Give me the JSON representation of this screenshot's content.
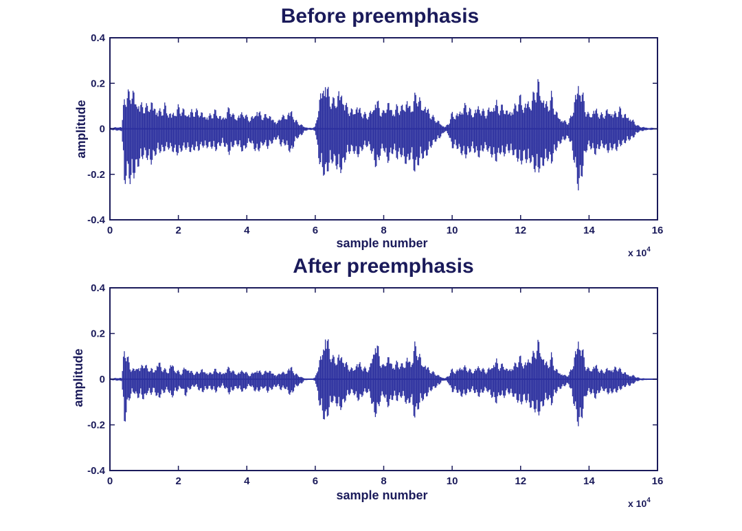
{
  "colors": {
    "axis": "#1a1a5a",
    "signal": "#2b2f9e",
    "background": "#ffffff"
  },
  "chart_data": [
    {
      "type": "line",
      "title": "Before preemphasis",
      "xlabel": "sample number",
      "ylabel": "amplitude",
      "x_multiplier": "x 10",
      "x_multiplier_exponent": "4",
      "xlim": [
        0,
        160000
      ],
      "ylim": [
        -0.4,
        0.4
      ],
      "xticks": [
        "0",
        "2",
        "4",
        "6",
        "8",
        "10",
        "12",
        "14",
        "16"
      ],
      "yticks": [
        "-0.4",
        "-0.2",
        "0",
        "0.2",
        "0.4"
      ],
      "grid": false,
      "series": [
        {
          "x": [
            0,
            3500,
            4200,
            5000,
            6000,
            7000,
            8000,
            9000,
            10000,
            11000,
            12000,
            13000,
            14000,
            15000,
            16000,
            17000,
            18000,
            19000,
            20000,
            21000,
            22000,
            23000,
            24000,
            25000,
            26000,
            27000,
            28000,
            29000,
            30000,
            31000,
            32000,
            33000,
            34000,
            35000,
            36000,
            37000,
            38000,
            39000,
            40000,
            41000,
            42000,
            43000,
            44000,
            45000,
            46000,
            47000,
            48000,
            49000,
            50000,
            51000,
            52000,
            53000,
            54000,
            55000,
            56000,
            57000,
            58000,
            59000,
            60000,
            61000,
            62000,
            63000,
            64000,
            65000,
            66000,
            67000,
            68000,
            69000,
            70000,
            71000,
            72000,
            73000,
            74000,
            75000,
            76000,
            77000,
            78000,
            79000,
            80000,
            81000,
            82000,
            83000,
            84000,
            85000,
            86000,
            87000,
            88000,
            89000,
            90000,
            91000,
            92000,
            93000,
            94000,
            95000,
            96000,
            97000,
            98000,
            99000,
            100000,
            101000,
            102000,
            103000,
            104000,
            105000,
            106000,
            107000,
            108000,
            109000,
            110000,
            111000,
            112000,
            113000,
            114000,
            115000,
            116000,
            117000,
            118000,
            119000,
            120000,
            121000,
            122000,
            123000,
            124000,
            125000,
            126000,
            127000,
            128000,
            129000,
            130000,
            131000,
            132000,
            133000,
            134000,
            135000,
            136000,
            137000,
            138000,
            139000,
            140000,
            141000,
            142000,
            143000,
            144000,
            145000,
            146000,
            147000,
            148000,
            149000,
            150000,
            151000,
            152000,
            153000,
            154000,
            155000,
            156000,
            157000,
            158000,
            159000,
            160000
          ],
          "max": [
            0.005,
            0.01,
            0.19,
            0.16,
            0.2,
            0.18,
            0.14,
            0.13,
            0.12,
            0.11,
            0.14,
            0.12,
            0.1,
            0.09,
            0.12,
            0.09,
            0.08,
            0.09,
            0.11,
            0.1,
            0.09,
            0.08,
            0.1,
            0.09,
            0.09,
            0.08,
            0.07,
            0.07,
            0.08,
            0.09,
            0.07,
            0.06,
            0.08,
            0.11,
            0.07,
            0.06,
            0.08,
            0.09,
            0.06,
            0.05,
            0.07,
            0.1,
            0.08,
            0.06,
            0.08,
            0.06,
            0.05,
            0.03,
            0.07,
            0.06,
            0.08,
            0.1,
            0.05,
            0.03,
            0.02,
            0.01,
            0.005,
            0.005,
            0.01,
            0.12,
            0.22,
            0.26,
            0.18,
            0.14,
            0.15,
            0.2,
            0.18,
            0.12,
            0.1,
            0.09,
            0.12,
            0.11,
            0.08,
            0.07,
            0.08,
            0.12,
            0.16,
            0.1,
            0.08,
            0.14,
            0.12,
            0.09,
            0.12,
            0.1,
            0.13,
            0.15,
            0.11,
            0.16,
            0.18,
            0.12,
            0.13,
            0.1,
            0.07,
            0.05,
            0.04,
            0.02,
            0.01,
            0.03,
            0.08,
            0.07,
            0.09,
            0.11,
            0.12,
            0.1,
            0.08,
            0.11,
            0.12,
            0.09,
            0.08,
            0.11,
            0.12,
            0.14,
            0.1,
            0.12,
            0.09,
            0.1,
            0.11,
            0.13,
            0.16,
            0.12,
            0.15,
            0.14,
            0.18,
            0.24,
            0.19,
            0.15,
            0.13,
            0.17,
            0.1,
            0.07,
            0.05,
            0.04,
            0.03,
            0.08,
            0.17,
            0.25,
            0.19,
            0.1,
            0.07,
            0.09,
            0.11,
            0.08,
            0.07,
            0.09,
            0.1,
            0.08,
            0.09,
            0.1,
            0.08,
            0.07,
            0.06,
            0.04,
            0.02,
            0.01,
            0.01,
            0.005,
            0.005,
            0.005
          ],
          "min": [
            -0.005,
            -0.01,
            -0.27,
            -0.2,
            -0.25,
            -0.22,
            -0.18,
            -0.15,
            -0.12,
            -0.14,
            -0.16,
            -0.13,
            -0.1,
            -0.11,
            -0.1,
            -0.09,
            -0.1,
            -0.11,
            -0.12,
            -0.1,
            -0.09,
            -0.1,
            -0.11,
            -0.09,
            -0.1,
            -0.08,
            -0.09,
            -0.08,
            -0.09,
            -0.1,
            -0.08,
            -0.07,
            -0.09,
            -0.12,
            -0.08,
            -0.07,
            -0.09,
            -0.11,
            -0.08,
            -0.06,
            -0.09,
            -0.11,
            -0.09,
            -0.07,
            -0.09,
            -0.07,
            -0.06,
            -0.04,
            -0.08,
            -0.07,
            -0.09,
            -0.12,
            -0.06,
            -0.04,
            -0.03,
            -0.01,
            -0.005,
            -0.005,
            -0.01,
            -0.14,
            -0.2,
            -0.22,
            -0.18,
            -0.15,
            -0.17,
            -0.2,
            -0.19,
            -0.13,
            -0.11,
            -0.1,
            -0.13,
            -0.12,
            -0.09,
            -0.08,
            -0.09,
            -0.14,
            -0.19,
            -0.12,
            -0.09,
            -0.16,
            -0.13,
            -0.1,
            -0.14,
            -0.12,
            -0.15,
            -0.17,
            -0.12,
            -0.2,
            -0.17,
            -0.13,
            -0.14,
            -0.11,
            -0.08,
            -0.06,
            -0.05,
            -0.03,
            -0.01,
            -0.03,
            -0.09,
            -0.08,
            -0.1,
            -0.12,
            -0.13,
            -0.11,
            -0.09,
            -0.12,
            -0.13,
            -0.1,
            -0.09,
            -0.12,
            -0.13,
            -0.15,
            -0.11,
            -0.13,
            -0.1,
            -0.11,
            -0.12,
            -0.14,
            -0.17,
            -0.13,
            -0.16,
            -0.15,
            -0.19,
            -0.2,
            -0.18,
            -0.16,
            -0.14,
            -0.16,
            -0.11,
            -0.08,
            -0.06,
            -0.05,
            -0.04,
            -0.09,
            -0.19,
            -0.29,
            -0.21,
            -0.11,
            -0.08,
            -0.1,
            -0.12,
            -0.09,
            -0.08,
            -0.1,
            -0.11,
            -0.09,
            -0.1,
            -0.08,
            -0.07,
            -0.06,
            -0.05,
            -0.04,
            -0.02,
            -0.01,
            -0.01,
            -0.005,
            -0.005,
            -0.005
          ]
        }
      ]
    },
    {
      "type": "line",
      "title": "After preemphasis",
      "xlabel": "sample number",
      "ylabel": "amplitude",
      "x_multiplier": "x 10",
      "x_multiplier_exponent": "4",
      "xlim": [
        0,
        160000
      ],
      "ylim": [
        -0.4,
        0.4
      ],
      "xticks": [
        "0",
        "2",
        "4",
        "6",
        "8",
        "10",
        "12",
        "14",
        "16"
      ],
      "yticks": [
        "-0.4",
        "-0.2",
        "0",
        "0.2",
        "0.4"
      ],
      "grid": false,
      "series": [
        {
          "x": [
            0,
            3500,
            4200,
            5000,
            6000,
            7000,
            8000,
            9000,
            10000,
            11000,
            12000,
            13000,
            14000,
            15000,
            16000,
            17000,
            18000,
            19000,
            20000,
            21000,
            22000,
            23000,
            24000,
            25000,
            26000,
            27000,
            28000,
            29000,
            30000,
            31000,
            32000,
            33000,
            34000,
            35000,
            36000,
            37000,
            38000,
            39000,
            40000,
            41000,
            42000,
            43000,
            44000,
            45000,
            46000,
            47000,
            48000,
            49000,
            50000,
            51000,
            52000,
            53000,
            54000,
            55000,
            56000,
            57000,
            58000,
            59000,
            60000,
            61000,
            62000,
            63000,
            64000,
            65000,
            66000,
            67000,
            68000,
            69000,
            70000,
            71000,
            72000,
            73000,
            74000,
            75000,
            76000,
            77000,
            78000,
            79000,
            80000,
            81000,
            82000,
            83000,
            84000,
            85000,
            86000,
            87000,
            88000,
            89000,
            90000,
            91000,
            92000,
            93000,
            94000,
            95000,
            96000,
            97000,
            98000,
            99000,
            100000,
            101000,
            102000,
            103000,
            104000,
            105000,
            106000,
            107000,
            108000,
            109000,
            110000,
            111000,
            112000,
            113000,
            114000,
            115000,
            116000,
            117000,
            118000,
            119000,
            120000,
            121000,
            122000,
            123000,
            124000,
            125000,
            126000,
            127000,
            128000,
            129000,
            130000,
            131000,
            132000,
            133000,
            134000,
            135000,
            136000,
            137000,
            138000,
            139000,
            140000,
            141000,
            142000,
            143000,
            144000,
            145000,
            146000,
            147000,
            148000,
            149000,
            150000,
            151000,
            152000,
            153000,
            154000,
            155000,
            156000,
            157000,
            158000,
            159000,
            160000
          ],
          "max": [
            0.004,
            0.008,
            0.18,
            0.12,
            0.06,
            0.05,
            0.07,
            0.06,
            0.09,
            0.05,
            0.06,
            0.04,
            0.1,
            0.06,
            0.05,
            0.04,
            0.09,
            0.05,
            0.04,
            0.03,
            0.07,
            0.05,
            0.04,
            0.03,
            0.04,
            0.05,
            0.04,
            0.03,
            0.04,
            0.05,
            0.04,
            0.03,
            0.05,
            0.06,
            0.04,
            0.03,
            0.04,
            0.05,
            0.03,
            0.02,
            0.04,
            0.05,
            0.04,
            0.03,
            0.05,
            0.04,
            0.03,
            0.02,
            0.04,
            0.03,
            0.05,
            0.07,
            0.03,
            0.02,
            0.01,
            0.005,
            0.003,
            0.003,
            0.008,
            0.08,
            0.14,
            0.25,
            0.17,
            0.11,
            0.1,
            0.13,
            0.12,
            0.08,
            0.06,
            0.05,
            0.08,
            0.09,
            0.06,
            0.05,
            0.06,
            0.16,
            0.2,
            0.1,
            0.06,
            0.12,
            0.1,
            0.07,
            0.09,
            0.07,
            0.08,
            0.12,
            0.08,
            0.17,
            0.15,
            0.09,
            0.08,
            0.06,
            0.04,
            0.03,
            0.02,
            0.01,
            0.005,
            0.02,
            0.05,
            0.04,
            0.06,
            0.07,
            0.06,
            0.05,
            0.04,
            0.06,
            0.07,
            0.05,
            0.04,
            0.06,
            0.08,
            0.1,
            0.06,
            0.08,
            0.05,
            0.06,
            0.07,
            0.09,
            0.11,
            0.08,
            0.1,
            0.12,
            0.13,
            0.19,
            0.15,
            0.1,
            0.08,
            0.12,
            0.06,
            0.04,
            0.03,
            0.02,
            0.02,
            0.06,
            0.14,
            0.22,
            0.16,
            0.07,
            0.05,
            0.06,
            0.08,
            0.05,
            0.04,
            0.05,
            0.06,
            0.05,
            0.07,
            0.05,
            0.04,
            0.03,
            0.02,
            0.02,
            0.01,
            0.005,
            0.005,
            0.003,
            0.003,
            0.003
          ],
          "min": [
            -0.004,
            -0.008,
            -0.22,
            -0.13,
            -0.08,
            -0.06,
            -0.09,
            -0.07,
            -0.1,
            -0.06,
            -0.07,
            -0.05,
            -0.1,
            -0.07,
            -0.06,
            -0.05,
            -0.09,
            -0.06,
            -0.05,
            -0.04,
            -0.08,
            -0.05,
            -0.04,
            -0.03,
            -0.05,
            -0.06,
            -0.05,
            -0.04,
            -0.05,
            -0.06,
            -0.04,
            -0.03,
            -0.05,
            -0.07,
            -0.05,
            -0.04,
            -0.05,
            -0.06,
            -0.04,
            -0.03,
            -0.05,
            -0.06,
            -0.05,
            -0.04,
            -0.06,
            -0.05,
            -0.04,
            -0.03,
            -0.05,
            -0.04,
            -0.06,
            -0.08,
            -0.04,
            -0.03,
            -0.02,
            -0.005,
            -0.003,
            -0.003,
            -0.008,
            -0.1,
            -0.16,
            -0.2,
            -0.15,
            -0.1,
            -0.11,
            -0.14,
            -0.13,
            -0.09,
            -0.07,
            -0.06,
            -0.09,
            -0.1,
            -0.07,
            -0.06,
            -0.07,
            -0.16,
            -0.17,
            -0.1,
            -0.07,
            -0.13,
            -0.11,
            -0.08,
            -0.1,
            -0.08,
            -0.09,
            -0.13,
            -0.09,
            -0.18,
            -0.14,
            -0.1,
            -0.09,
            -0.07,
            -0.05,
            -0.04,
            -0.03,
            -0.01,
            -0.005,
            -0.02,
            -0.06,
            -0.05,
            -0.07,
            -0.08,
            -0.07,
            -0.06,
            -0.05,
            -0.07,
            -0.08,
            -0.06,
            -0.05,
            -0.07,
            -0.09,
            -0.11,
            -0.07,
            -0.09,
            -0.06,
            -0.07,
            -0.08,
            -0.1,
            -0.12,
            -0.09,
            -0.11,
            -0.13,
            -0.14,
            -0.17,
            -0.14,
            -0.11,
            -0.09,
            -0.12,
            -0.07,
            -0.05,
            -0.04,
            -0.03,
            -0.02,
            -0.07,
            -0.15,
            -0.22,
            -0.17,
            -0.08,
            -0.06,
            -0.07,
            -0.09,
            -0.06,
            -0.05,
            -0.06,
            -0.07,
            -0.06,
            -0.06,
            -0.05,
            -0.04,
            -0.03,
            -0.03,
            -0.02,
            -0.01,
            -0.005,
            -0.005,
            -0.003,
            -0.003,
            -0.003
          ]
        }
      ]
    }
  ]
}
